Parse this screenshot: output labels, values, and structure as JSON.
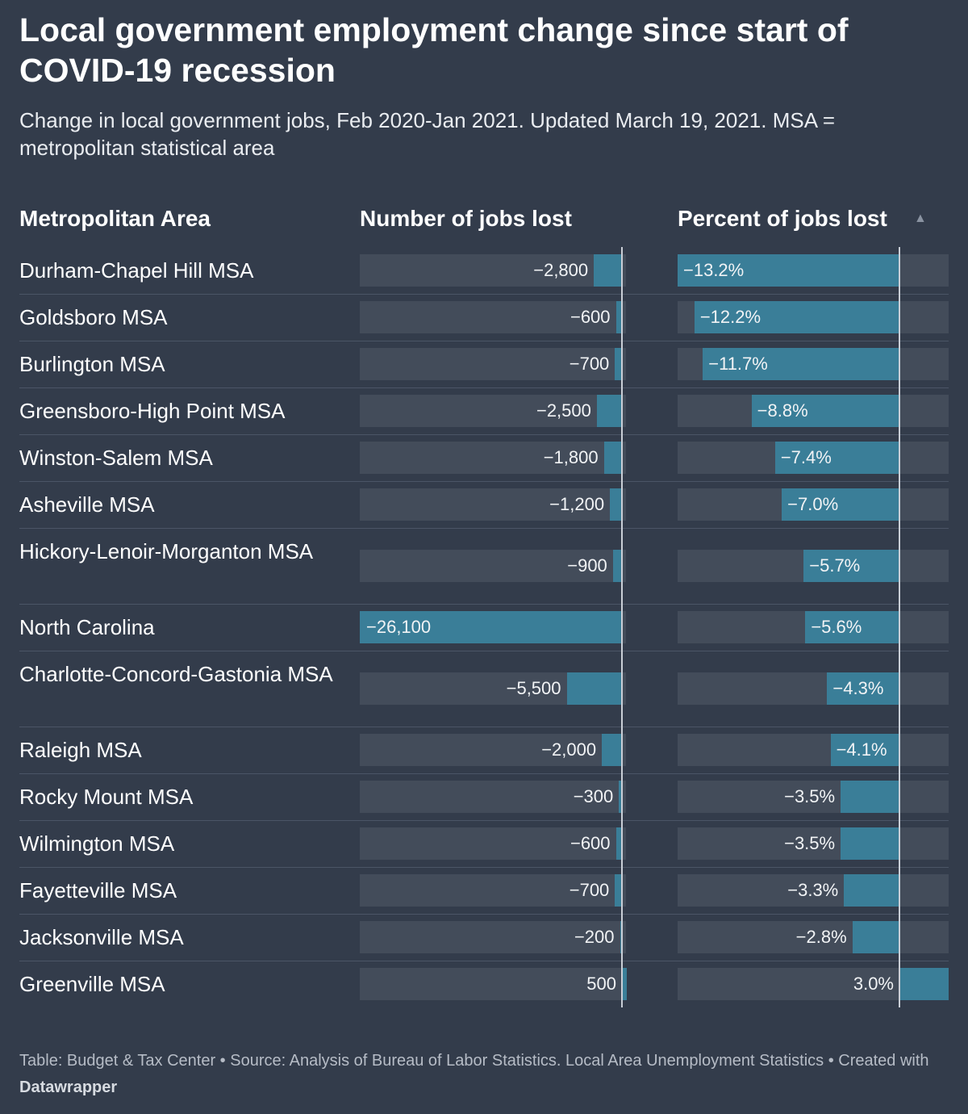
{
  "title": "Local government employment change since start of COVID-19 recession",
  "subtitle": "Change in local government jobs, Feb 2020-Jan 2021. Updated March 19, 2021. MSA = metropolitan statistical area",
  "columns": {
    "area": "Metropolitan Area",
    "jobs": "Number of jobs lost",
    "pct": "Percent of jobs lost",
    "sort_icon": "sort-up-triangle-icon"
  },
  "colors": {
    "background": "#333c4b",
    "bar": "#3a7e98",
    "track": "#434c5a"
  },
  "chart_data": {
    "type": "table",
    "rows": [
      {
        "area": "Durham-Chapel Hill MSA",
        "jobs": -2800,
        "jobs_label": "−2,800",
        "pct": -13.2,
        "pct_label": "−13.2%"
      },
      {
        "area": "Goldsboro MSA",
        "jobs": -600,
        "jobs_label": "−600",
        "pct": -12.2,
        "pct_label": "−12.2%"
      },
      {
        "area": "Burlington MSA",
        "jobs": -700,
        "jobs_label": "−700",
        "pct": -11.7,
        "pct_label": "−11.7%"
      },
      {
        "area": "Greensboro-High Point MSA",
        "jobs": -2500,
        "jobs_label": "−2,500",
        "pct": -8.8,
        "pct_label": "−8.8%"
      },
      {
        "area": "Winston-Salem MSA",
        "jobs": -1800,
        "jobs_label": "−1,800",
        "pct": -7.4,
        "pct_label": "−7.4%"
      },
      {
        "area": "Asheville MSA",
        "jobs": -1200,
        "jobs_label": "−1,200",
        "pct": -7.0,
        "pct_label": "−7.0%"
      },
      {
        "area": "Hickory-Lenoir-Morganton MSA",
        "jobs": -900,
        "jobs_label": "−900",
        "pct": -5.7,
        "pct_label": "−5.7%"
      },
      {
        "area": "North Carolina",
        "jobs": -26100,
        "jobs_label": "−26,100",
        "pct": -5.6,
        "pct_label": "−5.6%"
      },
      {
        "area": "Charlotte-Concord-Gastonia MSA",
        "jobs": -5500,
        "jobs_label": "−5,500",
        "pct": -4.3,
        "pct_label": "−4.3%"
      },
      {
        "area": "Raleigh MSA",
        "jobs": -2000,
        "jobs_label": "−2,000",
        "pct": -4.1,
        "pct_label": "−4.1%"
      },
      {
        "area": "Rocky Mount MSA",
        "jobs": -300,
        "jobs_label": "−300",
        "pct": -3.5,
        "pct_label": "−3.5%"
      },
      {
        "area": "Wilmington MSA",
        "jobs": -600,
        "jobs_label": "−600",
        "pct": -3.5,
        "pct_label": "−3.5%"
      },
      {
        "area": "Fayetteville MSA",
        "jobs": -700,
        "jobs_label": "−700",
        "pct": -3.3,
        "pct_label": "−3.3%"
      },
      {
        "area": "Jacksonville MSA",
        "jobs": -200,
        "jobs_label": "−200",
        "pct": -2.8,
        "pct_label": "−2.8%"
      },
      {
        "area": "Greenville MSA",
        "jobs": 500,
        "jobs_label": "500",
        "pct": 3.0,
        "pct_label": "3.0%"
      }
    ]
  },
  "footer": {
    "text": "Table: Budget & Tax Center • Source: Analysis of Bureau of Labor Statistics. Local Area Unemployment Statistics • Created with ",
    "brand": "Datawrapper"
  }
}
